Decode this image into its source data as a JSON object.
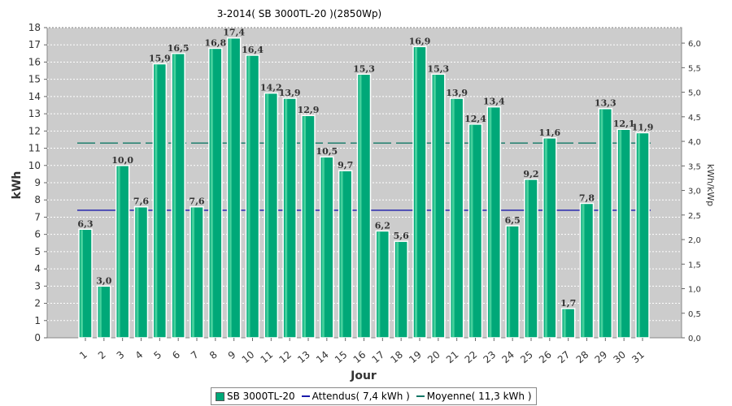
{
  "chart_data": {
    "type": "bar",
    "title": "3-2014( SB 3000TL-20 )(2850Wp)",
    "xlabel": "Jour",
    "ylabel": "kWh",
    "ylabel_right": "kWh/kWp",
    "categories": [
      "1",
      "2",
      "3",
      "4",
      "5",
      "6",
      "7",
      "8",
      "9",
      "10",
      "11",
      "12",
      "13",
      "14",
      "15",
      "16",
      "17",
      "18",
      "19",
      "20",
      "21",
      "22",
      "23",
      "24",
      "25",
      "26",
      "27",
      "28",
      "29",
      "30",
      "31"
    ],
    "series": [
      {
        "name": "SB 3000TL-20",
        "color": "#00a878",
        "values": [
          6.3,
          3.0,
          10.0,
          7.6,
          15.9,
          16.5,
          7.6,
          16.8,
          17.4,
          16.4,
          14.2,
          13.9,
          12.9,
          10.5,
          9.7,
          15.3,
          6.2,
          5.6,
          16.9,
          15.3,
          13.9,
          12.4,
          13.4,
          6.5,
          9.2,
          11.6,
          1.7,
          7.8,
          13.3,
          12.1,
          11.9
        ],
        "data_labels": [
          "6,3",
          "3,0",
          "10,0",
          "7,6",
          "15,9",
          "16,5",
          "7,6",
          "16,8",
          "17,4",
          "16,4",
          "14,2",
          "13,9",
          "12,9",
          "10,5",
          "9,7",
          "15,3",
          "6,2",
          "5,6",
          "16,9",
          "15,3",
          "13,9",
          "12,4",
          "13,4",
          "6,5",
          "9,2",
          "11,6",
          "1,7",
          "7,8",
          "13,3",
          "12,1",
          "11,9"
        ]
      }
    ],
    "reference_lines": [
      {
        "name": "Attendus",
        "legend_label": "Attendus( 7,4 kWh )",
        "value": 7.4,
        "color": "#1a1aaa"
      },
      {
        "name": "Moyenne",
        "legend_label": "Moyenne( 11,3 kWh )",
        "value": 11.3,
        "color": "#117766"
      }
    ],
    "y_ticks": [
      "0",
      "1",
      "2",
      "3",
      "4",
      "5",
      "6",
      "7",
      "8",
      "9",
      "10",
      "11",
      "12",
      "13",
      "14",
      "15",
      "16",
      "17",
      "18"
    ],
    "ylim": [
      0,
      18
    ],
    "y_right_ticks": [
      "0,0",
      "0,5",
      "1,0",
      "1,5",
      "2,0",
      "2,5",
      "3,0",
      "3,5",
      "4,0",
      "4,5",
      "5,0",
      "5,5",
      "6,0"
    ],
    "y_right_values": [
      0,
      0.5,
      1.0,
      1.5,
      2.0,
      2.5,
      3.0,
      3.5,
      4.0,
      4.5,
      5.0,
      5.5,
      6.0
    ],
    "y_right_per_left_unit": 0.35088,
    "grid": true,
    "legend_position": "bottom",
    "plot_background": "#cccccc"
  },
  "legend": {
    "series_label": "SB 3000TL-20",
    "attendus_label": "Attendus( 7,4 kWh )",
    "moyenne_label": "Moyenne( 11,3 kWh )"
  }
}
